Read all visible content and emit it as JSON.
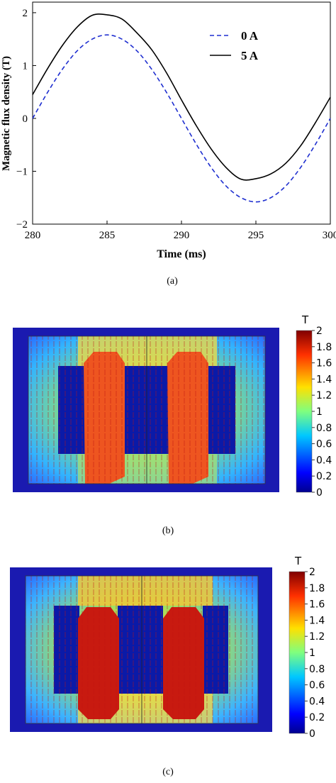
{
  "panels": {
    "a": {
      "caption": "(a)",
      "chart_data": {
        "type": "line",
        "xlabel": "Time (ms)",
        "ylabel": "Magnetic flux density (T)",
        "xlim": [
          280,
          300
        ],
        "ylim": [
          -2,
          2.2
        ],
        "x_ticks": [
          "280",
          "285",
          "290",
          "295",
          "300"
        ],
        "y_ticks": [
          "2",
          "1",
          "0",
          "−1",
          "−2"
        ],
        "legend_position": "top-right",
        "series": [
          {
            "name": "0 A",
            "style": "dashed",
            "color": "#1f2fd0",
            "x": [
              280,
              281,
              282,
              283,
              284,
              285,
              286,
              287,
              288,
              289,
              290,
              291,
              292,
              293,
              294,
              295,
              296,
              297,
              298,
              299,
              300
            ],
            "y": [
              0.0,
              0.49,
              0.93,
              1.28,
              1.5,
              1.58,
              1.5,
              1.28,
              0.93,
              0.49,
              0.0,
              -0.49,
              -0.93,
              -1.28,
              -1.5,
              -1.58,
              -1.5,
              -1.28,
              -0.93,
              -0.49,
              0.0
            ]
          },
          {
            "name": "5 A",
            "style": "solid",
            "color": "#000000",
            "x": [
              280,
              281,
              282,
              283,
              284,
              285,
              286,
              287,
              288,
              289,
              290,
              291,
              292,
              293,
              294,
              295,
              296,
              297,
              298,
              299,
              300
            ],
            "y": [
              0.45,
              0.94,
              1.38,
              1.73,
              1.95,
              1.96,
              1.88,
              1.62,
              1.3,
              0.86,
              0.35,
              -0.14,
              -0.58,
              -0.93,
              -1.15,
              -1.14,
              -1.05,
              -0.85,
              -0.52,
              -0.08,
              0.4
            ]
          }
        ]
      }
    },
    "b": {
      "caption": "(b)",
      "colorbar": {
        "unit": "T",
        "ticks": [
          "2",
          "1.8",
          "1.6",
          "1.4",
          "1.2",
          "1",
          "0.8",
          "0.6",
          "0.4",
          "0.2",
          "0"
        ]
      }
    },
    "c": {
      "caption": "(c)",
      "colorbar": {
        "unit": "T",
        "ticks": [
          "2",
          "1.8",
          "1.6",
          "1.4",
          "1.2",
          "1",
          "0.8",
          "0.6",
          "0.4",
          "0.2",
          "0"
        ]
      }
    }
  },
  "colors": {
    "jet_dark_blue": "#00008f",
    "jet_blue": "#0050ff",
    "jet_cyan": "#00c8ff",
    "jet_green": "#7fff7f",
    "jet_yellow": "#ffe000",
    "jet_orange": "#ff7a00",
    "jet_red": "#d80000",
    "jet_dark_red": "#800000"
  }
}
